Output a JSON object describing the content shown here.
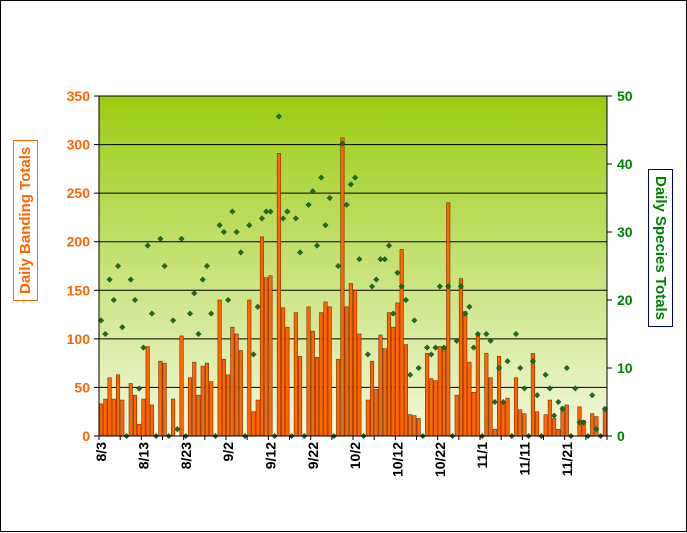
{
  "chart_data": {
    "type": "bar+scatter",
    "ylabel_left": "Daily Banding Totals",
    "ylabel_right": "Daily Species Totals",
    "ylim_left": [
      0,
      350
    ],
    "ylim_right": [
      0,
      50
    ],
    "yticks_left": [
      0,
      50,
      100,
      150,
      200,
      250,
      300,
      350
    ],
    "yticks_right": [
      0,
      10,
      20,
      30,
      40,
      50
    ],
    "x_tick_labels": [
      "8/3",
      "8/13",
      "8/23",
      "9/2",
      "9/12",
      "9/22",
      "10/2",
      "10/12",
      "10/22",
      "11/1",
      "11/11",
      "11/21"
    ],
    "x_tick_day_index": [
      0,
      10,
      20,
      30,
      40,
      50,
      60,
      70,
      80,
      90,
      100,
      110
    ],
    "grid": "horizontal",
    "colors": {
      "bar": "#ff6600",
      "bar_edge": "#7a2a00",
      "marker": "#1e6b1e",
      "plot_top": "#9acd11",
      "plot_bottom": "#f2f8dd"
    },
    "series": [
      {
        "name": "Daily Banding Totals",
        "axis": "left",
        "values": [
          33,
          38,
          60,
          38,
          63,
          37,
          0,
          54,
          42,
          12,
          38,
          92,
          32,
          0,
          77,
          75,
          0,
          38,
          0,
          103,
          0,
          60,
          76,
          42,
          72,
          75,
          56,
          0,
          140,
          79,
          63,
          112,
          105,
          88,
          0,
          140,
          25,
          37,
          205,
          163,
          165,
          0,
          291,
          132,
          112,
          0,
          127,
          82,
          0,
          133,
          108,
          81,
          127,
          138,
          133,
          0,
          79,
          307,
          133,
          157,
          150,
          105,
          0,
          37,
          77,
          48,
          104,
          90,
          127,
          112,
          137,
          192,
          94,
          22,
          21,
          18,
          0,
          85,
          59,
          57,
          92,
          92,
          240,
          0,
          42,
          162,
          128,
          76,
          45,
          105,
          0,
          85,
          60,
          7,
          82,
          35,
          39,
          0,
          60,
          27,
          23,
          0,
          85,
          25,
          0,
          22,
          37,
          18,
          7,
          30,
          32,
          0,
          0,
          30,
          16,
          0,
          23,
          20,
          0,
          27
        ]
      },
      {
        "name": "Daily Species Totals",
        "axis": "right",
        "values": [
          17,
          15,
          23,
          20,
          25,
          16,
          0,
          23,
          20,
          7,
          13,
          28,
          18,
          0,
          29,
          25,
          0,
          17,
          1,
          29,
          0,
          18,
          21,
          15,
          23,
          25,
          18,
          0,
          31,
          30,
          20,
          33,
          30,
          27,
          0,
          31,
          12,
          19,
          32,
          33,
          33,
          0,
          47,
          32,
          33,
          0,
          32,
          27,
          0,
          34,
          36,
          28,
          38,
          31,
          35,
          0,
          25,
          43,
          34,
          37,
          38,
          26,
          0,
          12,
          22,
          23,
          26,
          26,
          28,
          18,
          24,
          22,
          20,
          9,
          17,
          10,
          0,
          13,
          12,
          13,
          22,
          13,
          22,
          0,
          14,
          22,
          18,
          19,
          13,
          15,
          0,
          15,
          14,
          5,
          10,
          5,
          11,
          0,
          15,
          10,
          7,
          0,
          11,
          6,
          0,
          9,
          7,
          3,
          5,
          4,
          10,
          0,
          7,
          2,
          2,
          0,
          6,
          1,
          0,
          4
        ]
      }
    ]
  }
}
